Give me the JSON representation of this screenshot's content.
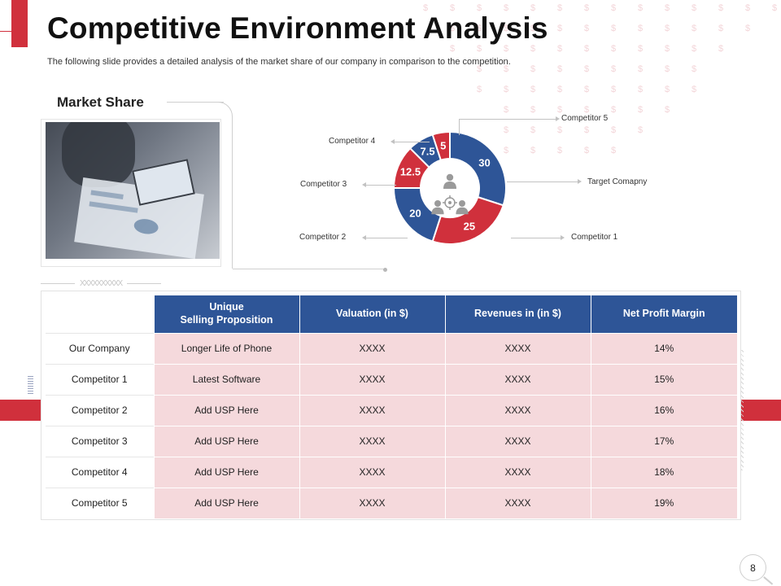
{
  "slide": {
    "title": "Competitive Environment Analysis",
    "subtitle": "The following slide provides a detailed analysis of the market share of our company in comparison to the competition.",
    "page_number": "8"
  },
  "market_share": {
    "label": "Market Share",
    "photo_icon": "business-meeting-photo",
    "center_icon": "target-users-icon"
  },
  "chart_data": {
    "type": "pie",
    "donut": true,
    "labels": [
      "Target Comapny",
      "Competitor 1",
      "Competitor 2",
      "Competitor 3",
      "Competitor 4",
      "Competitor 5"
    ],
    "values": [
      30,
      25,
      20,
      12.5,
      7.5,
      5
    ],
    "value_labels": [
      "30",
      "25",
      "20",
      "12.5",
      "7.5",
      "5"
    ],
    "colors": [
      "#2e5597",
      "#d0303c",
      "#2e5597",
      "#d0303c",
      "#2e5597",
      "#d0303c"
    ]
  },
  "table": {
    "headers": [
      "",
      "Unique\nSelling Proposition",
      "Valuation (in $)",
      "Revenues in (in $)",
      "Net Profit Margin"
    ],
    "header_lines": {
      "usp_line1": "Unique",
      "usp_line2": "Selling Proposition"
    },
    "rows": [
      {
        "name": "Our Company",
        "usp": "Longer Life of Phone",
        "valuation": "XXXX",
        "revenues": "XXXX",
        "margin": "14%"
      },
      {
        "name": "Competitor 1",
        "usp": "Latest Software",
        "valuation": "XXXX",
        "revenues": "XXXX",
        "margin": "15%"
      },
      {
        "name": "Competitor 2",
        "usp": "Add USP Here",
        "valuation": "XXXX",
        "revenues": "XXXX",
        "margin": "16%"
      },
      {
        "name": "Competitor 3",
        "usp": "Add USP Here",
        "valuation": "XXXX",
        "revenues": "XXXX",
        "margin": "17%"
      },
      {
        "name": "Competitor 4",
        "usp": "Add USP Here",
        "valuation": "XXXX",
        "revenues": "XXXX",
        "margin": "18%"
      },
      {
        "name": "Competitor 5",
        "usp": "Add USP Here",
        "valuation": "XXXX",
        "revenues": "XXXX",
        "margin": "19%"
      }
    ]
  },
  "colors": {
    "accent_red": "#d0303c",
    "accent_blue": "#2e5597",
    "row_pink": "#f5d9dc"
  },
  "decor": {
    "divider_text": "XXXXXXXXXX"
  }
}
